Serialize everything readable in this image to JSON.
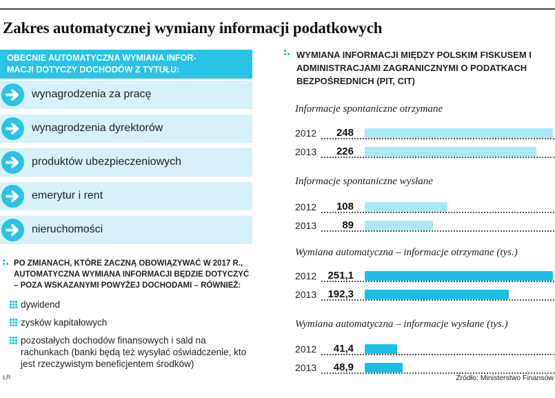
{
  "title": "Zakres automatycznej wymiany informacji podatkowych",
  "left": {
    "box_header": "OBECNIE AUTOMATYCZNA WYMIANA INFORMACJI DOTYCZY DOCHODÓW Z TYTUŁU:",
    "box_header_line1": "OBECNIE AUTOMATYCZNA WYMIANA INFOR-",
    "box_header_line2": "MACJI DOTYCZY DOCHODÓW Z TYTUŁU:",
    "items": [
      "wynagrodzenia za pracę",
      "wynagrodzenia dyrektorów",
      "produktów ubezpieczeniowych",
      "emerytur i rent",
      "nieruchomości"
    ],
    "section2_header": "PO ZMIANACH, KTÓRE ZACZNĄ OBOWIĄZYWAĆ W 2017 R., AUTOMATYCZNA WYMIANA INFORMACJI BĘDZIE DOTYCZYĆ – POZA WSKAZANYMI POWYŻEJ DOCHODAMI – RÓWNIEŻ:",
    "bullets": [
      "dywidend",
      "zysków kapitałowych",
      "pozostałych dochodów finansowych i sald na rachunkach (banki będą też wysyłać oświadczenie, kto jest rzeczywistym beneficjentem środków)"
    ]
  },
  "right_header": "WYMIANA INFORMACJI MIĘDZY POLSKIM FISKUSEM I ADMINISTRACJAMI ZAGRANICZNYMI O PODATKACH BEZPOŚREDNICH (PIT, CIT)",
  "chart_data": [
    {
      "type": "bar",
      "title": "Informacje spontaniczne otrzymane",
      "categories": [
        "2012",
        "2013"
      ],
      "values": [
        248,
        226
      ],
      "labels": [
        "248",
        "226"
      ],
      "color": "#a9e8f5"
    },
    {
      "type": "bar",
      "title": "Informacje spontaniczne wysłane",
      "categories": [
        "2012",
        "2013"
      ],
      "values": [
        108,
        89
      ],
      "labels": [
        "108",
        "89"
      ],
      "color": "#a9e8f5"
    },
    {
      "type": "bar",
      "title": "Wymiana automatyczna – informacje otrzymane (tys.)",
      "categories": [
        "2012",
        "2013"
      ],
      "values": [
        251.1,
        192.3
      ],
      "labels": [
        "251,1",
        "192,3"
      ],
      "color": "#1bbfe6"
    },
    {
      "type": "bar",
      "title": "Wymiana automatyczna – informacje wysłane (tys.)",
      "categories": [
        "2012",
        "2013"
      ],
      "values": [
        41.4,
        48.9
      ],
      "labels": [
        "41,4",
        "48,9"
      ],
      "color": "#1bbfe6"
    }
  ],
  "footer_left": "ŁR",
  "source": "Źródło: Ministerstwo Finansów",
  "colors": {
    "accent": "#29c3e6",
    "light": "#d6f1f8",
    "bar_light": "#a9e8f5",
    "bar_dark": "#1bbfe6"
  }
}
